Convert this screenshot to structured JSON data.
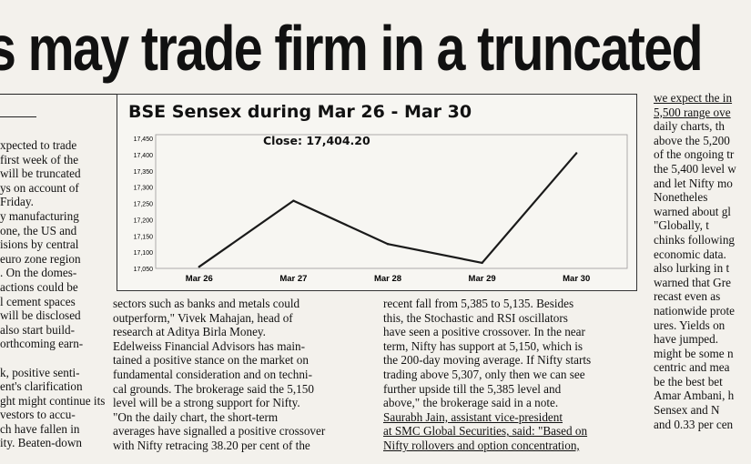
{
  "headline": "s may trade firm in a truncated",
  "chart_data": {
    "type": "line",
    "title": "BSE Sensex during Mar 26 - Mar 30",
    "annotation": "Close: 17,404.20",
    "categories": [
      "Mar 26",
      "Mar 27",
      "Mar 28",
      "Mar 29",
      "Mar 30"
    ],
    "values": [
      17055,
      17258,
      17125,
      17067,
      17404
    ],
    "ylim": [
      17050,
      17450
    ],
    "yticks": [
      "17,050",
      "17,100",
      "17,150",
      "17,200",
      "17,250",
      "17,300",
      "17,350",
      "17,400",
      "17,450"
    ],
    "grid": false,
    "line_color": "#1a1a1a"
  },
  "columns": {
    "left": [
      "xpected to trade",
      "first week of the",
      "will be truncated",
      "ys on account of",
      "Friday.",
      "y manufacturing",
      "one, the US and",
      "isions by central",
      "euro zone region",
      ". On the domes-",
      "actions could be",
      "l cement spaces",
      "will be disclosed",
      "also start build-",
      "orthcoming earn-",
      "",
      "k, positive senti-",
      "ent's clarification",
      "ght might continue its",
      "vestors to accu-",
      "ch have fallen in",
      "ity. Beaten-down"
    ],
    "mid1": [
      "sectors such as banks and metals could",
      "outperform,\" Vivek Mahajan, head of",
      "research at Aditya Birla Money.",
      "   Edelweiss Financial Advisors has main-",
      "tained a positive stance on the market on",
      "fundamental consideration and on techni-",
      "cal grounds. The brokerage said the 5,150",
      "level will be a strong support for Nifty.",
      "   \"On the daily chart, the short-term",
      "averages have signalled a positive crossover",
      "with Nifty retracing 38.20 per cent of the"
    ],
    "mid2": [
      "recent fall from 5,385 to 5,135. Besides",
      "this, the Stochastic and RSI oscillators",
      "have seen a positive crossover. In the near",
      "term, Nifty has support at 5,150, which is",
      "the 200-day moving average. If Nifty starts",
      "trading above 5,307, only then we can see",
      "further upside till the 5,385 level and",
      "above,\" the brokerage said in a note.",
      "   Saurabh Jain, assistant vice-president",
      "at SMC Global Securities, said: \"Based on",
      "Nifty rollovers and option concentration,"
    ],
    "right": [
      "we expect the in",
      "5,500 range ove",
      "daily charts, th",
      "above the 5,200",
      "of the ongoing tr",
      "the 5,400 level w",
      "and let Nifty mo",
      "   Nonetheles",
      "warned about gl",
      "   \"Globally, t",
      "chinks following",
      "economic data.",
      "also lurking in t",
      "warned that Gre",
      "recast even as",
      "nationwide prote",
      "ures. Yields on",
      "have jumped.",
      "might be some n",
      "centric and mea",
      "be the best bet",
      "Amar Ambani, h",
      "   Sensex and N",
      "and 0.33 per cen"
    ]
  }
}
